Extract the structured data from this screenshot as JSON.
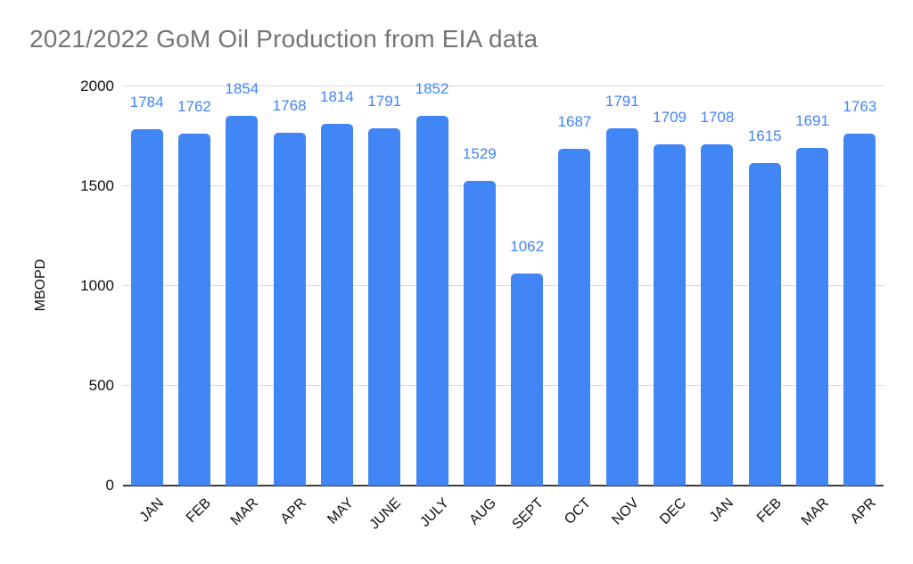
{
  "title": "2021/2022 GoM Oil Production from EIA data",
  "chart_data": {
    "type": "bar",
    "title": "2021/2022 GoM Oil Production from EIA data",
    "xlabel": "",
    "ylabel": "MBOPD",
    "ylim": [
      0,
      2000
    ],
    "yticks": [
      0,
      500,
      1000,
      1500,
      2000
    ],
    "grid": true,
    "legend_position": "none",
    "categories": [
      "JAN",
      "FEB",
      "MAR",
      "APR",
      "MAY",
      "JUNE",
      "JULY",
      "AUG",
      "SEPT",
      "OCT",
      "NOV",
      "DEC",
      "JAN",
      "FEB",
      "MAR",
      "APR"
    ],
    "values": [
      1784,
      1762,
      1854,
      1768,
      1814,
      1791,
      1852,
      1529,
      1062,
      1687,
      1791,
      1709,
      1708,
      1615,
      1691,
      1763
    ],
    "bar_color": "#4285f4",
    "value_label_color": "#4285f4",
    "gridline_color": "#d9d9d9",
    "axis_line_color": "#3c3c3c",
    "title_color": "#757575",
    "tick_label_color": "#111111"
  }
}
